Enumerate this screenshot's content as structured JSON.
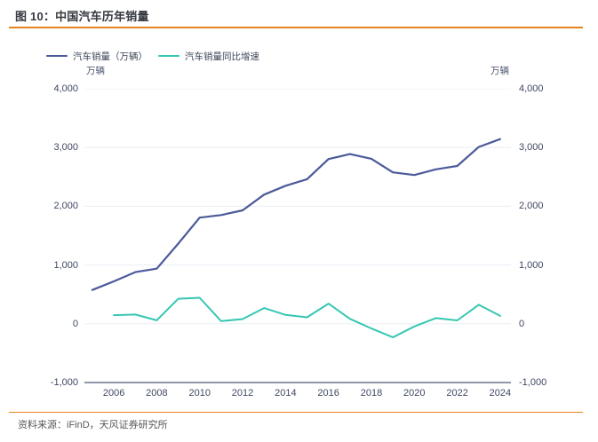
{
  "figure": {
    "label_title": "图 10：中国汽车历年销量",
    "source": "资料来源：iFinD，天风证券研究所"
  },
  "legend": [
    {
      "label": "汽车销量（万辆）",
      "color": "#4C5A9A"
    },
    {
      "label": "汽车销量同比增速",
      "color": "#35C7B2"
    }
  ],
  "axes": {
    "left_unit": "万辆",
    "right_unit": "万辆",
    "y_ticks": [
      {
        "label": "4,000",
        "value": 4000
      },
      {
        "label": "3,000",
        "value": 3000
      },
      {
        "label": "2,000",
        "value": 2000
      },
      {
        "label": "1,000",
        "value": 1000
      },
      {
        "label": "0",
        "value": 0
      },
      {
        "label": "-1,000",
        "value": -1000
      }
    ],
    "x_ticks": [
      {
        "label": "2006",
        "value": 2006
      },
      {
        "label": "2008",
        "value": 2008
      },
      {
        "label": "2010",
        "value": 2010
      },
      {
        "label": "2012",
        "value": 2012
      },
      {
        "label": "2014",
        "value": 2014
      },
      {
        "label": "2016",
        "value": 2016
      },
      {
        "label": "2018",
        "value": 2018
      },
      {
        "label": "2020",
        "value": 2020
      },
      {
        "label": "2022",
        "value": 2022
      },
      {
        "label": "2024",
        "value": 2024
      }
    ]
  },
  "chart_data": {
    "type": "line",
    "title": "中国汽车历年销量",
    "xlabel": "",
    "ylabel": "万辆",
    "ylim": [
      -1000,
      4000
    ],
    "xlim": [
      2004.63,
      2024.5
    ],
    "grid": true,
    "legend_position": "top-left",
    "colors": {
      "accent_orange": "#E8821E",
      "grid": "#EAEDF4",
      "axis": "#4F5874"
    },
    "series": [
      {
        "name": "汽车销量（万辆）",
        "color": "#4C5A9A",
        "x": [
          2005,
          2006,
          2007,
          2008,
          2009,
          2010,
          2011,
          2012,
          2013,
          2014,
          2015,
          2016,
          2017,
          2018,
          2019,
          2020,
          2021,
          2022,
          2023,
          2024
        ],
        "values": [
          576,
          722,
          879,
          938,
          1364,
          1806,
          1851,
          1931,
          2198,
          2349,
          2460,
          2803,
          2888,
          2808,
          2577,
          2531,
          2628,
          2686,
          3009,
          3144
        ]
      },
      {
        "name": "汽车销量同比增速",
        "color": "#35C7B2",
        "x": [
          2006,
          2007,
          2008,
          2009,
          2010,
          2011,
          2012,
          2013,
          2014,
          2015,
          2016,
          2017,
          2018,
          2019,
          2020,
          2021,
          2022,
          2023,
          2024
        ],
        "values": [
          146,
          157,
          59,
          426,
          442,
          45,
          80,
          267,
          151,
          111,
          343,
          85,
          -80,
          -231,
          -46,
          97,
          58,
          323,
          135
        ]
      }
    ]
  }
}
